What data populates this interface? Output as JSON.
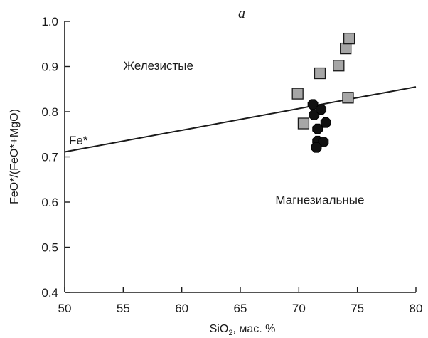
{
  "chart_data": {
    "type": "scatter",
    "panel_label": "a",
    "xlabel_main": "SiO",
    "xlabel_sub": "2",
    "xlabel_rest": ", мас. %",
    "ylabel": "FeO*/(FeO*+MgO)",
    "xlim": [
      50,
      80
    ],
    "ylim": [
      0.4,
      1.0
    ],
    "x_ticks": [
      50,
      55,
      60,
      65,
      70,
      75,
      80
    ],
    "x_tick_labels": [
      "50",
      "55",
      "60",
      "65",
      "70",
      "75",
      "80"
    ],
    "y_ticks": [
      0.4,
      0.5,
      0.6,
      0.7,
      0.8,
      0.9,
      1.0
    ],
    "y_tick_labels": [
      "0.4",
      "0.5",
      "0.6",
      "0.7",
      "0.8",
      "0.9",
      "1.0"
    ],
    "grid": false,
    "boundary_line": {
      "label": "Fe*",
      "points": [
        [
          50,
          0.711
        ],
        [
          80,
          0.855
        ]
      ]
    },
    "regions": [
      {
        "label": "Железистые",
        "x": 55,
        "y": 0.893
      },
      {
        "label": "Магнезиальные",
        "x": 68,
        "y": 0.596
      }
    ],
    "series": [
      {
        "marker": "square",
        "color": "#a6a6a6",
        "points": [
          [
            69.9,
            0.84
          ],
          [
            70.4,
            0.774
          ],
          [
            71.8,
            0.885
          ],
          [
            73.4,
            0.902
          ],
          [
            74.0,
            0.94
          ],
          [
            74.3,
            0.962
          ],
          [
            74.2,
            0.831
          ]
        ]
      },
      {
        "marker": "circle",
        "color": "#111111",
        "points": [
          [
            71.2,
            0.816
          ],
          [
            71.3,
            0.793
          ],
          [
            71.9,
            0.805
          ],
          [
            72.3,
            0.776
          ],
          [
            71.6,
            0.762
          ],
          [
            71.6,
            0.735
          ],
          [
            72.1,
            0.733
          ],
          [
            71.5,
            0.721
          ]
        ]
      }
    ]
  }
}
